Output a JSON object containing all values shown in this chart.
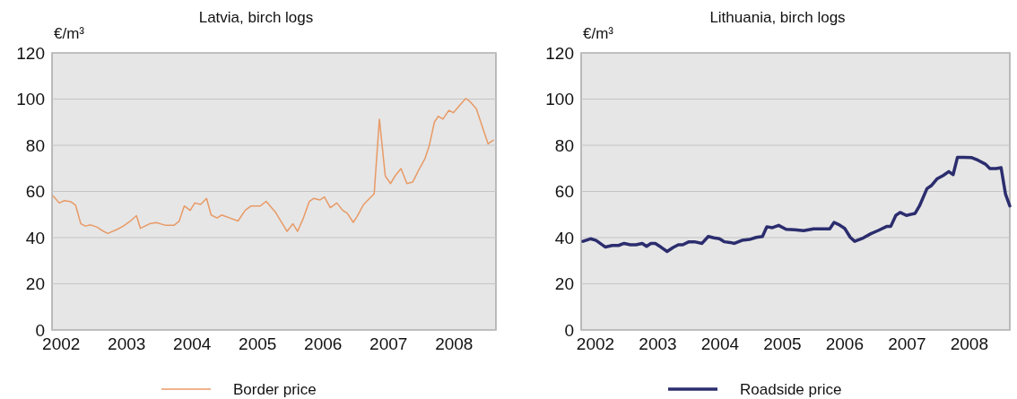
{
  "chart_data": [
    {
      "type": "line",
      "title": "Latvia, birch logs",
      "ylabel": "€/m³",
      "xlim": [
        2001.86,
        2008.64
      ],
      "xticks": [
        2002,
        2003,
        2004,
        2005,
        2006,
        2007,
        2008
      ],
      "ylim": [
        0,
        120
      ],
      "yticks": [
        0,
        20,
        40,
        60,
        80,
        100,
        120
      ],
      "grid": "y",
      "legend": "bottom",
      "series": [
        {
          "name": "Border price",
          "color": "#e89a66",
          "x": [
            2001.88,
            2001.97,
            2002.05,
            2002.15,
            2002.22,
            2002.3,
            2002.37,
            2002.45,
            2002.55,
            2002.63,
            2002.71,
            2002.85,
            2002.95,
            2003.05,
            2003.15,
            2003.21,
            2003.35,
            2003.45,
            2003.6,
            2003.72,
            2003.8,
            2003.88,
            2003.97,
            2004.04,
            2004.13,
            2004.22,
            2004.29,
            2004.38,
            2004.45,
            2004.7,
            2004.81,
            2004.9,
            2005.04,
            2005.13,
            2005.27,
            2005.45,
            2005.54,
            2005.61,
            2005.7,
            2005.79,
            2005.86,
            2005.95,
            2006.02,
            2006.11,
            2006.21,
            2006.3,
            2006.37,
            2006.46,
            2006.52,
            2006.62,
            2006.71,
            2006.78,
            2006.86,
            2006.95,
            2007.03,
            2007.1,
            2007.19,
            2007.28,
            2007.37,
            2007.46,
            2007.55,
            2007.62,
            2007.7,
            2007.76,
            2007.83,
            2007.92,
            2007.99,
            2008.08,
            2008.18,
            2008.24,
            2008.34,
            2008.44,
            2008.52,
            2008.6
          ],
          "values": [
            58,
            55,
            56,
            55.5,
            54,
            46,
            45,
            45.5,
            44.5,
            43,
            41.8,
            43.5,
            45,
            47,
            49.5,
            44,
            46,
            46.5,
            45.3,
            45.3,
            47,
            53.7,
            51.8,
            55,
            54.4,
            57,
            49.8,
            48.5,
            49.8,
            47.2,
            51.8,
            53.7,
            53.7,
            55.7,
            51.1,
            42.7,
            46,
            42.7,
            48.5,
            55.7,
            57,
            56.3,
            57.6,
            53,
            55,
            51.8,
            50.5,
            46.6,
            49.2,
            54.4,
            57,
            58.9,
            91.3,
            66.7,
            63.4,
            66.7,
            69.9,
            63.4,
            64.1,
            69.3,
            73.8,
            79.6,
            90,
            92.6,
            91.3,
            95.1,
            94.1,
            97.1,
            100.3,
            99,
            95.8,
            87.4,
            80.6,
            82.2
          ]
        }
      ]
    },
    {
      "type": "line",
      "title": "Lithuania, birch logs",
      "ylabel": "€/m³",
      "xlim": [
        2001.77,
        2008.65
      ],
      "xticks": [
        2002,
        2003,
        2004,
        2005,
        2006,
        2007,
        2008
      ],
      "ylim": [
        0,
        120
      ],
      "yticks": [
        0,
        20,
        40,
        60,
        80,
        100,
        120
      ],
      "grid": "y",
      "legend": "bottom",
      "series": [
        {
          "name": "Roadside price",
          "color": "#2b2d6e",
          "x": [
            2001.8,
            2001.92,
            2002.01,
            2002.16,
            2002.27,
            2002.37,
            2002.46,
            2002.56,
            2002.65,
            2002.75,
            2002.82,
            2002.89,
            2002.96,
            2003.05,
            2003.15,
            2003.24,
            2003.33,
            2003.4,
            2003.5,
            2003.59,
            2003.71,
            2003.81,
            2003.9,
            2003.99,
            2004.07,
            2004.16,
            2004.23,
            2004.35,
            2004.47,
            2004.58,
            2004.68,
            2004.75,
            2004.84,
            2004.94,
            2005.06,
            2005.2,
            2005.34,
            2005.5,
            2005.65,
            2005.76,
            2005.83,
            2005.9,
            2006.0,
            2006.09,
            2006.16,
            2006.3,
            2006.42,
            2006.54,
            2006.68,
            2006.74,
            2006.82,
            2006.89,
            2006.99,
            2007.13,
            2007.2,
            2007.32,
            2007.39,
            2007.48,
            2007.58,
            2007.67,
            2007.74,
            2007.81,
            2007.91,
            2008.03,
            2008.14,
            2008.26,
            2008.33,
            2008.43,
            2008.51,
            2008.58,
            2008.65
          ],
          "values": [
            38.4,
            39.5,
            38.8,
            35.9,
            36.6,
            36.6,
            37.5,
            36.9,
            36.9,
            37.5,
            36.2,
            37.5,
            37.5,
            35.9,
            34,
            35.6,
            36.9,
            36.9,
            38.2,
            38.2,
            37.5,
            40.5,
            39.9,
            39.5,
            38.2,
            37.9,
            37.5,
            38.8,
            39.2,
            40.1,
            40.5,
            44.7,
            44.3,
            45.3,
            43.6,
            43.4,
            43,
            43.8,
            43.8,
            43.8,
            46.6,
            45.7,
            44,
            40.1,
            38.4,
            39.9,
            41.7,
            43.1,
            44.9,
            44.9,
            49.6,
            50.9,
            49.6,
            50.5,
            53.7,
            61.2,
            62.5,
            65.4,
            66.9,
            68.6,
            67.3,
            74.8,
            74.8,
            74.7,
            73.5,
            71.8,
            69.9,
            69.9,
            70.3,
            58.9,
            53.7
          ]
        }
      ]
    }
  ]
}
